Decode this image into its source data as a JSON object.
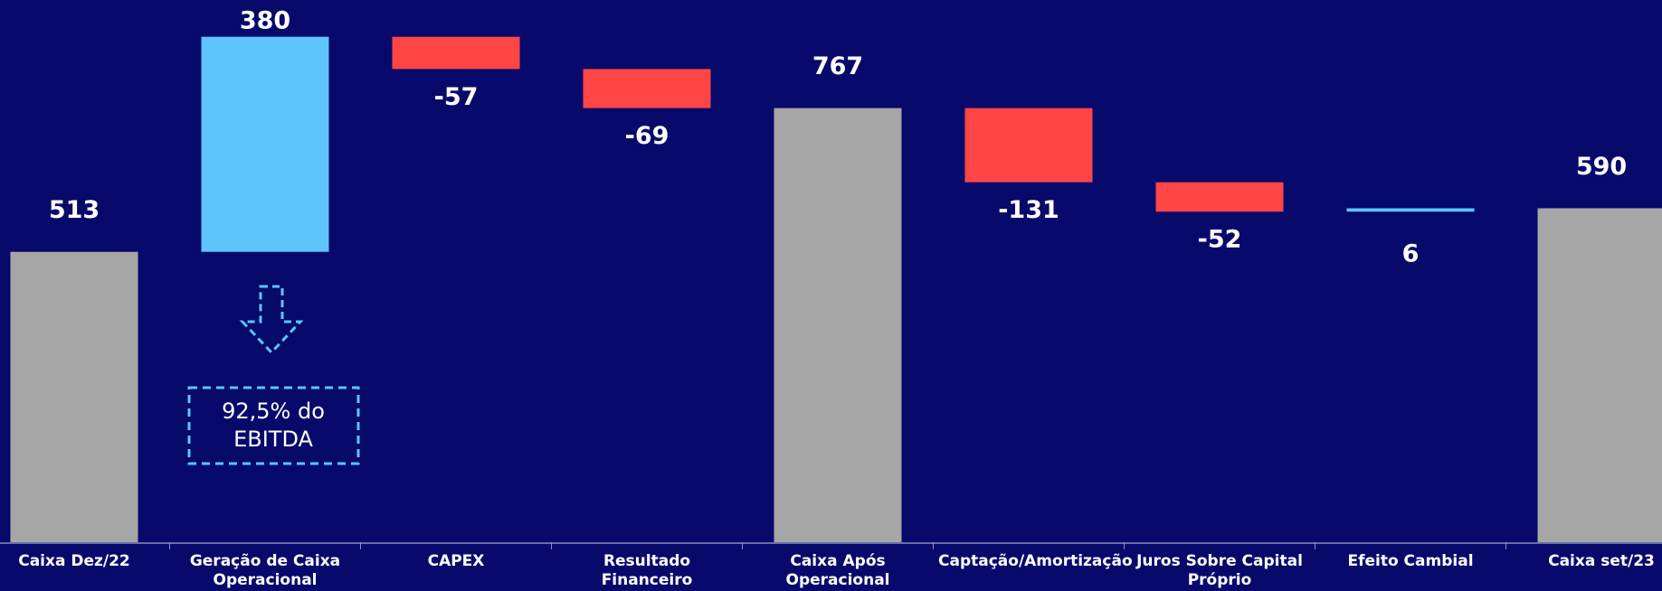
{
  "chart_data": {
    "type": "waterfall",
    "categories": [
      "Caixa Dez/22",
      "Geração de Caixa Operacional",
      "CAPEX",
      "Resultado Financeiro",
      "Caixa Após Operacional",
      "Captação/Amortização",
      "Juros Sobre Capital Próprio",
      "Efeito Cambial",
      "Caixa set/23"
    ],
    "values": [
      513,
      380,
      -57,
      -69,
      767,
      -131,
      -52,
      6,
      590
    ],
    "measure": [
      "total",
      "relative",
      "relative",
      "relative",
      "total",
      "relative",
      "relative",
      "relative",
      "total"
    ],
    "colors": {
      "total": "#a6a6a6",
      "increase": "#5ec4fc",
      "decrease": "#ff4545"
    },
    "ylim": [
      0,
      950
    ],
    "annotation": "92,5% do EBITDA"
  }
}
